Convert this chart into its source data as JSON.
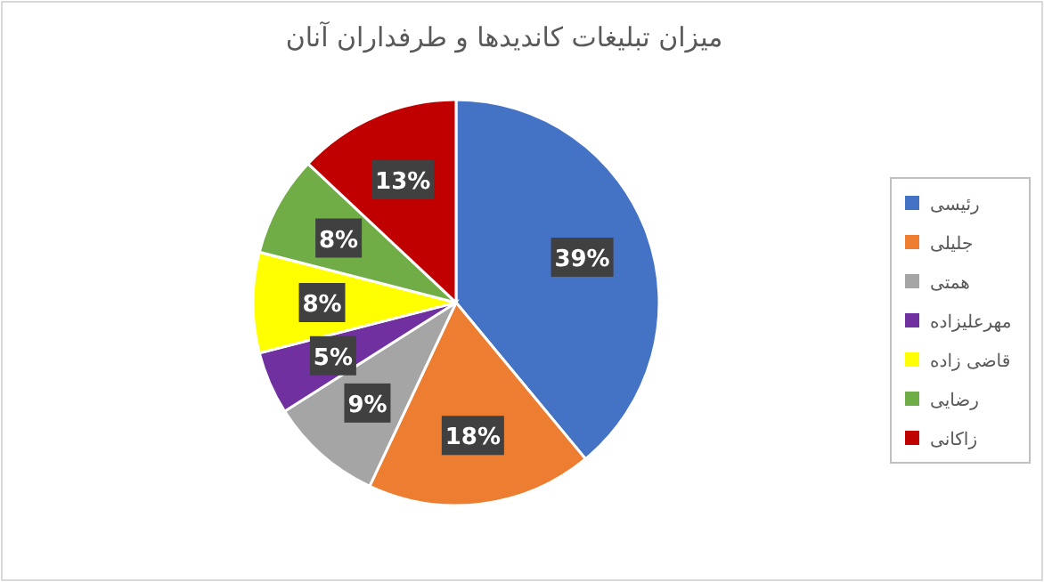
{
  "chart_data": {
    "type": "pie",
    "title": "میزان تبلیغات کاندیدها و طرفداران آنان",
    "categories": [
      "رئیسی",
      "جلیلی",
      "همتی",
      "مهرعلیزاده",
      "قاضی زاده",
      "رضایی",
      "زاکانی"
    ],
    "values": [
      39,
      18,
      9,
      5,
      8,
      8,
      13
    ],
    "colors": [
      "#4472c4",
      "#ed7d31",
      "#a5a5a5",
      "#7030a0",
      "#ffff00",
      "#70ad47",
      "#c00000"
    ],
    "value_labels": [
      "39%",
      "18%",
      "9%",
      "5%",
      "8%",
      "8%",
      "13%"
    ],
    "legend": "right"
  }
}
